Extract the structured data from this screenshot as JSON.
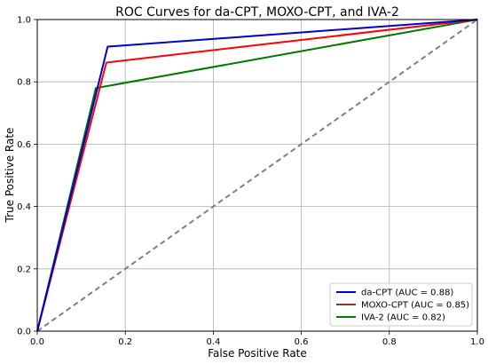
{
  "chart_data": {
    "type": "line",
    "title": "ROC Curves for da-CPT, MOXO-CPT, and IVA-2",
    "xlabel": "False Positive Rate",
    "ylabel": "True Positive Rate",
    "xlim": [
      0.0,
      1.0
    ],
    "ylim": [
      0.0,
      1.0
    ],
    "xticks": [
      "0.0",
      "0.2",
      "0.4",
      "0.6",
      "0.8",
      "1.0"
    ],
    "yticks": [
      "0.0",
      "0.2",
      "0.4",
      "0.6",
      "0.8",
      "1.0"
    ],
    "grid": true,
    "legend_position": "bottom-right",
    "series": [
      {
        "name": "da-CPT (AUC = 0.88)",
        "color": "#0000cc",
        "x": [
          0.0,
          0.16,
          1.0
        ],
        "y": [
          0.0,
          0.913,
          1.0
        ]
      },
      {
        "name": "MOXO-CPT (AUC = 0.85)",
        "legend_color": "#8b3a0f",
        "color": "#ff0000",
        "x": [
          0.0,
          0.157,
          1.0
        ],
        "y": [
          0.0,
          0.862,
          1.0
        ]
      },
      {
        "name": "IVA-2 (AUC = 0.82)",
        "color": "#007700",
        "x": [
          0.0,
          0.133,
          1.0
        ],
        "y": [
          0.0,
          0.78,
          1.0
        ]
      }
    ],
    "reference_line": {
      "color": "#808080",
      "style": "dashed",
      "x": [
        0.0,
        1.0
      ],
      "y": [
        0.0,
        1.0
      ]
    }
  }
}
